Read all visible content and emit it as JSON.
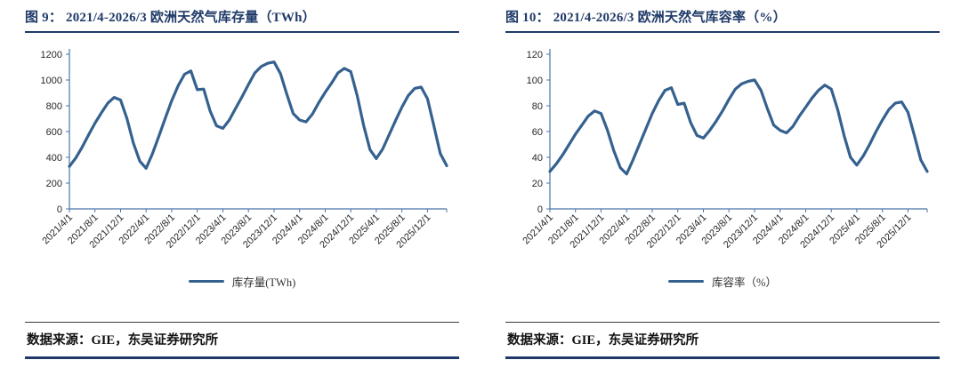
{
  "accent_color": "#35618f",
  "axis_color": "#4a76a8",
  "title_color": "#1f3a68",
  "panels": [
    {
      "title": "图 9：  2021/4-2026/3 欧洲天然气库存量（TWh）",
      "source": "数据来源：GIE，东吴证券研究所"
    },
    {
      "title": "图 10：  2021/4-2026/3 欧洲天然气库容率（%）",
      "source": "数据来源：GIE，东吴证券研究所"
    }
  ],
  "chart_data": [
    {
      "type": "line",
      "title": "2021/4-2026/3 欧洲天然气库存量（TWh）",
      "legend_label": "库存量(TWh)",
      "legend_position": "bottom",
      "grid": false,
      "line_color": "#35618f",
      "ylim": [
        0,
        1200
      ],
      "yticks": [
        0,
        200,
        400,
        600,
        800,
        1000,
        1200
      ],
      "xtick_step": 4,
      "xtick_labels": [
        "2021/4/1",
        "2021/8/1",
        "2021/12/1",
        "2022/4/1",
        "2022/8/1",
        "2022/12/1",
        "2023/4/1",
        "2023/8/1",
        "2023/12/1",
        "2024/4/1",
        "2024/8/1",
        "2024/12/1",
        "2025/4/1",
        "2025/8/1",
        "2025/12/1"
      ],
      "x": [
        "2021/4",
        "2021/5",
        "2021/6",
        "2021/7",
        "2021/8",
        "2021/9",
        "2021/10",
        "2021/11",
        "2021/12",
        "2022/1",
        "2022/2",
        "2022/3",
        "2022/4",
        "2022/5",
        "2022/6",
        "2022/7",
        "2022/8",
        "2022/9",
        "2022/10",
        "2022/11",
        "2022/12",
        "2023/1",
        "2023/2",
        "2023/3",
        "2023/4",
        "2023/5",
        "2023/6",
        "2023/7",
        "2023/8",
        "2023/9",
        "2023/10",
        "2023/11",
        "2023/12",
        "2024/1",
        "2024/2",
        "2024/3",
        "2024/4",
        "2024/5",
        "2024/6",
        "2024/7",
        "2024/8",
        "2024/9",
        "2024/10",
        "2024/11",
        "2024/12",
        "2025/1",
        "2025/2",
        "2025/3",
        "2025/4",
        "2025/5",
        "2025/6",
        "2025/7",
        "2025/8",
        "2025/9",
        "2025/10",
        "2025/11",
        "2025/12",
        "2026/1",
        "2026/2",
        "2026/3"
      ],
      "values": [
        330,
        395,
        480,
        575,
        665,
        745,
        820,
        865,
        845,
        700,
        510,
        370,
        315,
        430,
        565,
        705,
        840,
        955,
        1045,
        1070,
        925,
        930,
        760,
        645,
        625,
        690,
        780,
        870,
        965,
        1055,
        1105,
        1130,
        1140,
        1050,
        890,
        740,
        690,
        675,
        735,
        825,
        905,
        975,
        1055,
        1090,
        1065,
        880,
        650,
        460,
        390,
        465,
        575,
        685,
        790,
        880,
        935,
        945,
        855,
        645,
        430,
        335
      ]
    },
    {
      "type": "line",
      "title": "2021/4-2026/3 欧洲天然气库容率（%）",
      "legend_label": "库容率（%）",
      "legend_position": "bottom",
      "grid": false,
      "line_color": "#35618f",
      "ylim": [
        0,
        120
      ],
      "yticks": [
        0,
        20,
        40,
        60,
        80,
        100,
        120
      ],
      "xtick_step": 4,
      "xtick_labels": [
        "2021/4/1",
        "2021/8/1",
        "2021/12/1",
        "2022/4/1",
        "2022/8/1",
        "2022/12/1",
        "2023/4/1",
        "2023/8/1",
        "2023/12/1",
        "2024/4/1",
        "2024/8/1",
        "2024/12/1",
        "2025/4/1",
        "2025/8/1",
        "2025/12/1"
      ],
      "x": [
        "2021/4",
        "2021/5",
        "2021/6",
        "2021/7",
        "2021/8",
        "2021/9",
        "2021/10",
        "2021/11",
        "2021/12",
        "2022/1",
        "2022/2",
        "2022/3",
        "2022/4",
        "2022/5",
        "2022/6",
        "2022/7",
        "2022/8",
        "2022/9",
        "2022/10",
        "2022/11",
        "2022/12",
        "2023/1",
        "2023/2",
        "2023/3",
        "2023/4",
        "2023/5",
        "2023/6",
        "2023/7",
        "2023/8",
        "2023/9",
        "2023/10",
        "2023/11",
        "2023/12",
        "2024/1",
        "2024/2",
        "2024/3",
        "2024/4",
        "2024/5",
        "2024/6",
        "2024/7",
        "2024/8",
        "2024/9",
        "2024/10",
        "2024/11",
        "2024/12",
        "2025/1",
        "2025/2",
        "2025/3",
        "2025/4",
        "2025/5",
        "2025/6",
        "2025/7",
        "2025/8",
        "2025/9",
        "2025/10",
        "2025/11",
        "2025/12",
        "2026/1",
        "2026/2",
        "2026/3"
      ],
      "values": [
        29,
        35,
        42,
        50,
        58,
        65,
        72,
        76,
        74,
        61,
        45,
        32,
        27,
        38,
        50,
        62,
        74,
        84,
        92,
        94,
        81,
        82,
        67,
        57,
        55,
        61,
        68,
        76,
        85,
        93,
        97,
        99,
        100,
        92,
        78,
        65,
        61,
        59,
        64,
        72,
        79,
        86,
        92,
        96,
        93,
        77,
        57,
        40,
        34,
        41,
        50,
        60,
        69,
        77,
        82,
        83,
        75,
        57,
        38,
        29
      ]
    }
  ]
}
